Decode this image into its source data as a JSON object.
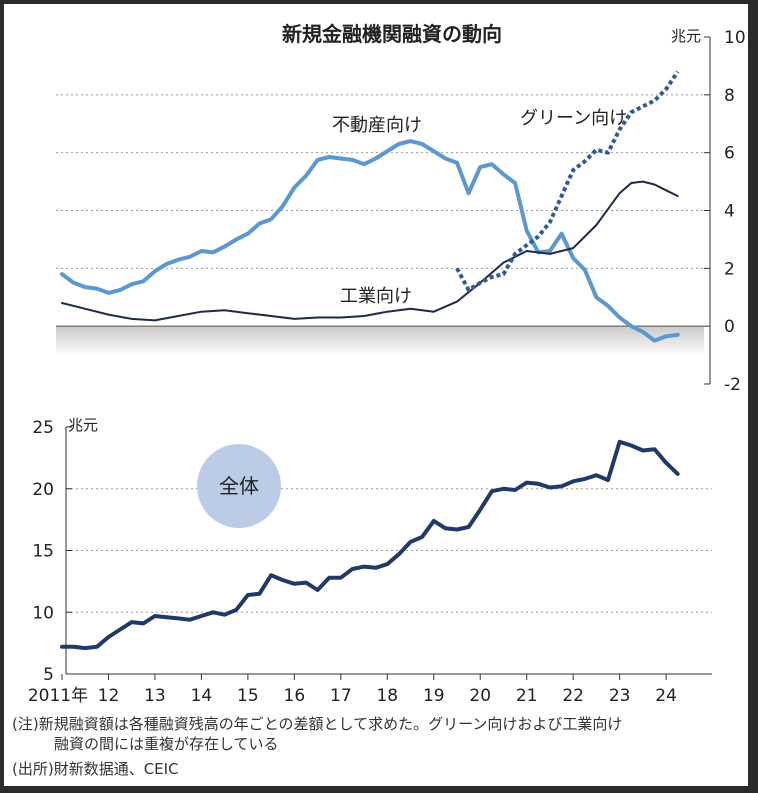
{
  "chart_data": [
    {
      "type": "line",
      "title": "新規金融機関融資の動向",
      "unit": "兆元",
      "ylim": [
        -2,
        10
      ],
      "yticks": [
        "10",
        "8",
        "6",
        "4",
        "2",
        "0",
        "-2"
      ],
      "x_range": [
        2011,
        2024.6
      ],
      "grid": "dashed horizontal",
      "series": [
        {
          "name": "不動産向け",
          "color": "#5b97d1",
          "style": "solid thick",
          "x": [
            2011.0,
            2011.25,
            2011.5,
            2011.75,
            2012.0,
            2012.25,
            2012.5,
            2012.75,
            2013.0,
            2013.25,
            2013.5,
            2013.75,
            2014.0,
            2014.25,
            2014.5,
            2014.75,
            2015.0,
            2015.25,
            2015.5,
            2015.75,
            2016.0,
            2016.25,
            2016.5,
            2016.75,
            2017.0,
            2017.25,
            2017.5,
            2017.75,
            2018.0,
            2018.25,
            2018.5,
            2018.75,
            2019.0,
            2019.25,
            2019.5,
            2019.75,
            2020.0,
            2020.25,
            2020.5,
            2020.75,
            2021.0,
            2021.25,
            2021.5,
            2021.75,
            2022.0,
            2022.25,
            2022.5,
            2022.75,
            2023.0,
            2023.25,
            2023.5,
            2023.75,
            2024.0,
            2024.25
          ],
          "y": [
            1.8,
            1.5,
            1.35,
            1.3,
            1.15,
            1.25,
            1.45,
            1.55,
            1.9,
            2.15,
            2.3,
            2.4,
            2.6,
            2.55,
            2.75,
            3.0,
            3.2,
            3.55,
            3.7,
            4.15,
            4.8,
            5.2,
            5.75,
            5.85,
            5.8,
            5.75,
            5.6,
            5.8,
            6.05,
            6.3,
            6.4,
            6.3,
            6.05,
            5.8,
            5.65,
            4.6,
            5.5,
            5.6,
            5.25,
            4.95,
            3.3,
            2.55,
            2.6,
            3.2,
            2.35,
            1.95,
            1.0,
            0.7,
            0.3,
            0.0,
            -0.2,
            -0.5,
            -0.35,
            -0.3
          ]
        },
        {
          "name": "工業向け",
          "color": "#1f2a4a",
          "style": "solid thin",
          "x": [
            2011.0,
            2011.5,
            2012.0,
            2012.5,
            2013.0,
            2013.5,
            2014.0,
            2014.5,
            2015.0,
            2015.5,
            2016.0,
            2016.5,
            2017.0,
            2017.5,
            2018.0,
            2018.5,
            2019.0,
            2019.5,
            2020.0,
            2020.5,
            2021.0,
            2021.5,
            2022.0,
            2022.5,
            2023.0,
            2023.25,
            2023.5,
            2023.75,
            2024.0,
            2024.25
          ],
          "y": [
            0.8,
            0.6,
            0.4,
            0.25,
            0.2,
            0.35,
            0.5,
            0.55,
            0.45,
            0.35,
            0.25,
            0.3,
            0.3,
            0.35,
            0.5,
            0.6,
            0.5,
            0.85,
            1.5,
            2.2,
            2.6,
            2.5,
            2.7,
            3.5,
            4.6,
            4.95,
            5.0,
            4.9,
            4.7,
            4.5
          ]
        },
        {
          "name": "グリーン向け",
          "color": "#2f5a92",
          "style": "dotted thick",
          "x": [
            2019.5,
            2019.75,
            2020.0,
            2020.25,
            2020.5,
            2020.75,
            2021.0,
            2021.25,
            2021.5,
            2021.75,
            2022.0,
            2022.25,
            2022.5,
            2022.75,
            2023.0,
            2023.25,
            2023.5,
            2023.75,
            2024.0,
            2024.25
          ],
          "y": [
            2.0,
            1.25,
            1.5,
            1.7,
            1.8,
            2.5,
            2.8,
            3.1,
            3.6,
            4.5,
            5.4,
            5.7,
            6.1,
            6.0,
            6.8,
            7.4,
            7.6,
            7.8,
            8.2,
            8.8
          ]
        }
      ]
    },
    {
      "type": "line",
      "unit": "兆元",
      "ylim": [
        5,
        25
      ],
      "yticks": [
        "25",
        "20",
        "15",
        "10",
        "5"
      ],
      "x_range": [
        2011,
        2024.6
      ],
      "grid": "dashed horizontal",
      "annotation": "全体",
      "series": [
        {
          "name": "全体",
          "color": "#1f3a68",
          "style": "solid thick",
          "x": [
            2011.0,
            2011.25,
            2011.5,
            2011.75,
            2012.0,
            2012.25,
            2012.5,
            2012.75,
            2013.0,
            2013.25,
            2013.5,
            2013.75,
            2014.0,
            2014.25,
            2014.5,
            2014.75,
            2015.0,
            2015.25,
            2015.5,
            2015.75,
            2016.0,
            2016.25,
            2016.5,
            2016.75,
            2017.0,
            2017.25,
            2017.5,
            2017.75,
            2018.0,
            2018.25,
            2018.5,
            2018.75,
            2019.0,
            2019.25,
            2019.5,
            2019.75,
            2020.0,
            2020.25,
            2020.5,
            2020.75,
            2021.0,
            2021.25,
            2021.5,
            2021.75,
            2022.0,
            2022.25,
            2022.5,
            2022.75,
            2023.0,
            2023.25,
            2023.5,
            2023.75,
            2024.0,
            2024.25
          ],
          "y": [
            7.2,
            7.2,
            7.1,
            7.2,
            8.0,
            8.6,
            9.2,
            9.1,
            9.7,
            9.6,
            9.5,
            9.4,
            9.7,
            10.0,
            9.8,
            10.2,
            11.4,
            11.5,
            13.0,
            12.6,
            12.3,
            12.4,
            11.8,
            12.8,
            12.8,
            13.5,
            13.7,
            13.6,
            13.9,
            14.7,
            15.7,
            16.1,
            17.4,
            16.8,
            16.7,
            16.9,
            18.3,
            19.8,
            20.0,
            19.9,
            20.5,
            20.4,
            20.1,
            20.2,
            20.6,
            20.8,
            21.1,
            20.7,
            23.8,
            23.5,
            23.1,
            23.2,
            22.1,
            21.2
          ]
        }
      ]
    }
  ],
  "x_axis": {
    "labels": [
      "2011年",
      "12",
      "13",
      "14",
      "15",
      "16",
      "17",
      "18",
      "19",
      "20",
      "21",
      "22",
      "23",
      "24"
    ]
  },
  "notes": {
    "note1": "(注)新規融資額は各種融資残高の年ごとの差額として求めた。グリーン向けおよび工業向け",
    "note2": "融資の間には重複が存在している",
    "source": "(出所)財新数据通、CEIC"
  }
}
